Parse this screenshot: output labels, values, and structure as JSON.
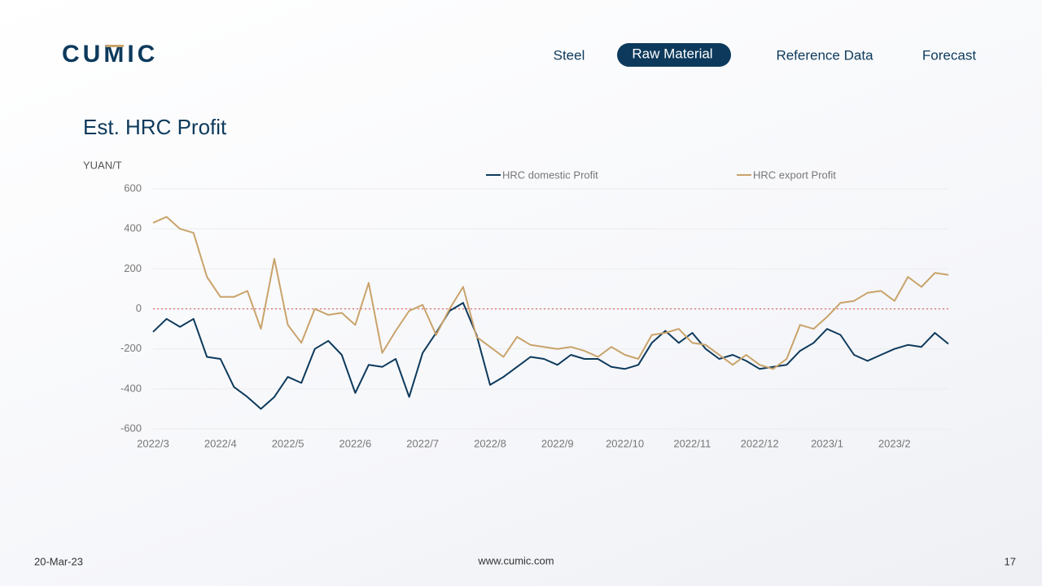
{
  "header": {
    "logo": "CUMIC",
    "nav": [
      "Steel",
      "Raw Material",
      "Reference Data",
      "Forecast"
    ],
    "active_nav": 1
  },
  "chart_data": {
    "type": "line",
    "title": "Est. HRC Profit",
    "y_label": "YUAN/T",
    "categories": [
      "2022/3",
      null,
      null,
      null,
      null,
      "2022/4",
      null,
      null,
      null,
      null,
      "2022/5",
      null,
      null,
      null,
      null,
      "2022/6",
      null,
      null,
      null,
      null,
      "2022/7",
      null,
      null,
      null,
      null,
      "2022/8",
      null,
      null,
      null,
      null,
      "2022/9",
      null,
      null,
      null,
      null,
      "2022/10",
      null,
      null,
      null,
      null,
      "2022/11",
      null,
      null,
      null,
      null,
      "2022/12",
      null,
      null,
      null,
      null,
      "2023/1",
      null,
      null,
      null,
      null,
      "2023/2",
      null,
      null,
      null,
      null
    ],
    "series": [
      {
        "name": "HRC domestic Profit",
        "color": "#0d3a5c",
        "values": [
          -115,
          -50,
          -90,
          -50,
          -240,
          -250,
          -390,
          -440,
          -500,
          -440,
          -340,
          -370,
          -200,
          -160,
          -230,
          -420,
          -280,
          -290,
          -250,
          -440,
          -220,
          -120,
          -10,
          30,
          -130,
          -380,
          -340,
          -290,
          -240,
          -250,
          -280,
          -230,
          -250,
          -250,
          -290,
          -300,
          -280,
          -170,
          -110,
          -170,
          -120,
          -200,
          -250,
          -230,
          -260,
          -300,
          -290,
          -280,
          -210,
          -170,
          -100,
          -130,
          -230,
          -260,
          -230,
          -200,
          -180,
          -190,
          -120,
          -175
        ]
      },
      {
        "name": "HRC export Profit",
        "color": "#c9a36a",
        "values": [
          430,
          460,
          400,
          380,
          160,
          60,
          60,
          90,
          -100,
          250,
          -80,
          -170,
          0,
          -30,
          -20,
          -80,
          130,
          -220,
          -110,
          -10,
          20,
          -130,
          0,
          110,
          -140,
          -190,
          -240,
          -140,
          -180,
          -190,
          -200,
          -190,
          -210,
          -240,
          -190,
          -230,
          -250,
          -130,
          -120,
          -100,
          -170,
          -180,
          -230,
          -280,
          -230,
          -280,
          -300,
          -250,
          -80,
          -100,
          -40,
          30,
          40,
          80,
          90,
          40,
          160,
          110,
          180,
          170
        ]
      }
    ],
    "ylim": [
      -600,
      600
    ],
    "yticks": [
      -600,
      -400,
      -200,
      0,
      200,
      400,
      600
    ],
    "grid": true,
    "reference_line": {
      "value": 0,
      "color": "#e06666"
    }
  },
  "footer": {
    "date": "20-Mar-23",
    "url": "www.cumic.com",
    "page": "17"
  }
}
